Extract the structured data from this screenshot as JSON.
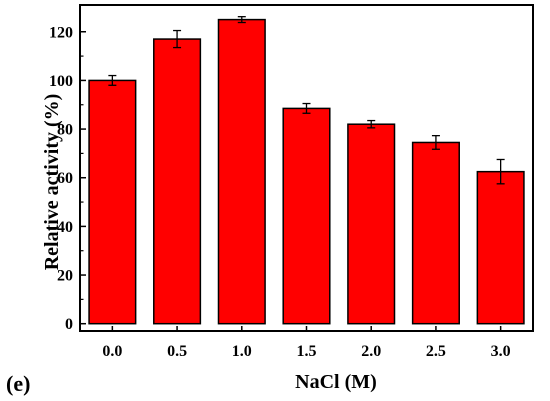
{
  "panel_label": "(e)",
  "chart_data": {
    "type": "bar",
    "categories": [
      "0.0",
      "0.5",
      "1.0",
      "1.5",
      "2.0",
      "2.5",
      "3.0"
    ],
    "values": [
      100,
      117,
      125,
      88.5,
      82,
      74.5,
      62.5
    ],
    "errors": [
      2,
      3.5,
      1.2,
      2,
      1.5,
      2.8,
      5
    ],
    "xlabel": "NaCl (M)",
    "ylabel": "Relative activity (%)",
    "ylim": [
      -3,
      131
    ],
    "yticks": [
      0,
      20,
      40,
      60,
      80,
      100,
      120
    ],
    "bar_color": "#ff0000",
    "bar_edge_color": "#000000",
    "grid": false
  }
}
